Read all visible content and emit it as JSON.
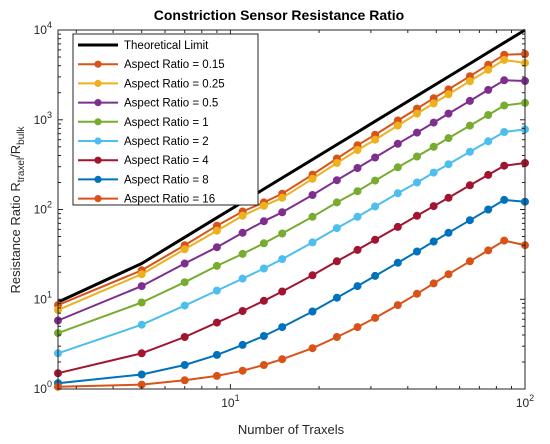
{
  "chart_data": {
    "type": "line",
    "title": "Constriction Sensor Resistance Ratio",
    "xlabel": "Number of Traxels",
    "ylabel_main": "Resistance Ratio R",
    "ylabel_sub1": "traxel",
    "ylabel_mid": "/R",
    "ylabel_sub2": "bulk",
    "xscale": "log",
    "yscale": "log",
    "xlim": [
      2.6,
      100
    ],
    "ylim": [
      1,
      10000
    ],
    "grid": false,
    "legend_position": "top-left",
    "x_ticks": [
      {
        "value": 10,
        "base": "10",
        "exp": "1"
      },
      {
        "value": 100,
        "base": "10",
        "exp": "2"
      }
    ],
    "y_ticks": [
      {
        "value": 1,
        "base": "10",
        "exp": "0"
      },
      {
        "value": 10,
        "base": "10",
        "exp": "1"
      },
      {
        "value": 100,
        "base": "10",
        "exp": "2"
      },
      {
        "value": 1000,
        "base": "10",
        "exp": "3"
      },
      {
        "value": 10000,
        "base": "10",
        "exp": "4"
      }
    ],
    "x": [
      2.6,
      5,
      7,
      9,
      11,
      13,
      15,
      19,
      23,
      27,
      31,
      37,
      43,
      49,
      55,
      65,
      75,
      85,
      100
    ],
    "series": [
      {
        "name": "Theoretical Limit",
        "color": "#000000",
        "markers": false,
        "values": [
          9.3,
          25,
          49,
          81,
          121,
          169,
          225,
          361,
          529,
          729,
          961,
          1369,
          1849,
          2401,
          3025,
          4225,
          5625,
          7225,
          10000
        ]
      },
      {
        "name": "Aspect Ratio = 0.15",
        "color": "#D95319",
        "markers": true,
        "values": [
          8.6,
          21,
          40,
          66,
          95,
          120,
          150,
          245,
          370,
          520,
          680,
          980,
          1330,
          1740,
          2180,
          3060,
          4100,
          5300,
          5400
        ]
      },
      {
        "name": "Aspect Ratio = 0.25",
        "color": "#EDB120",
        "markers": true,
        "values": [
          7.6,
          19,
          36,
          58,
          85,
          110,
          135,
          220,
          330,
          460,
          600,
          860,
          1170,
          1520,
          1920,
          2690,
          3600,
          4640,
          4300
        ]
      },
      {
        "name": "Aspect Ratio = 0.5",
        "color": "#7E2F8E",
        "markers": true,
        "values": [
          5.8,
          14,
          25,
          38,
          55,
          74,
          93,
          145,
          212,
          290,
          380,
          540,
          720,
          930,
          1170,
          1620,
          2150,
          2750,
          2700
        ]
      },
      {
        "name": "Aspect Ratio = 1",
        "color": "#77AC30",
        "markers": true,
        "values": [
          4.2,
          9.2,
          15.5,
          23.5,
          32,
          42,
          54,
          83,
          120,
          160,
          210,
          295,
          390,
          500,
          625,
          860,
          1130,
          1440,
          1540
        ]
      },
      {
        "name": "Aspect Ratio = 2",
        "color": "#4DBEEE",
        "markers": true,
        "values": [
          2.5,
          5.2,
          8.5,
          12.5,
          17,
          22,
          28,
          43,
          62,
          83,
          108,
          152,
          200,
          258,
          320,
          440,
          575,
          730,
          780
        ]
      },
      {
        "name": "Aspect Ratio = 4",
        "color": "#A2142F",
        "markers": true,
        "values": [
          1.5,
          2.5,
          3.8,
          5.5,
          7.4,
          9.6,
          12.2,
          18.5,
          26.5,
          35.5,
          46,
          64,
          85,
          109,
          135,
          186,
          243,
          308,
          330
        ]
      },
      {
        "name": "Aspect Ratio = 8",
        "color": "#0072BD",
        "markers": true,
        "values": [
          1.16,
          1.45,
          1.85,
          2.4,
          3.1,
          3.9,
          4.9,
          7.3,
          10.4,
          14,
          18.2,
          25.5,
          34,
          44,
          55,
          76,
          100,
          128,
          122
        ]
      },
      {
        "name": "Aspect Ratio = 16",
        "color": "#D95319",
        "markers": true,
        "values": [
          1.06,
          1.12,
          1.25,
          1.4,
          1.6,
          1.85,
          2.15,
          2.85,
          3.8,
          4.9,
          6.2,
          8.6,
          11.5,
          15,
          19,
          26.5,
          35,
          45,
          40
        ]
      }
    ]
  }
}
